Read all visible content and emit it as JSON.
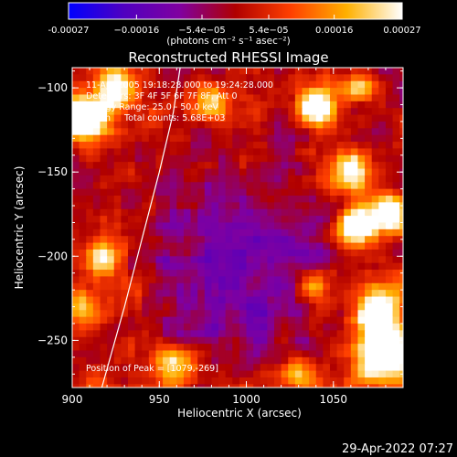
{
  "chart_data": {
    "type": "heatmap",
    "title": "Reconstructed RHESSI Image",
    "xlabel": "Heliocentric X (arcsec)",
    "ylabel": "Heliocentric Y (arcsec)",
    "xlim": [
      900,
      1090
    ],
    "ylim": [
      -278,
      -88
    ],
    "x_ticks": [
      900,
      950,
      1000,
      1050
    ],
    "x_tick_labels": [
      "900",
      "950",
      "1000",
      "1050"
    ],
    "y_ticks": [
      -100,
      -150,
      -200,
      -250
    ],
    "y_tick_labels": [
      "−100",
      "−150",
      "−200",
      "−250"
    ],
    "colorbar": {
      "range": [
        -0.00027,
        0.00027
      ],
      "ticks": [
        -0.00027,
        -0.00016,
        -5.4e-05,
        5.4e-05,
        0.00016,
        0.00027
      ],
      "tick_labels": [
        "-0.00027",
        "−0.00016",
        "−5.4e−05",
        "5.4e−05",
        "0.00016",
        "0.00027"
      ],
      "unit_label": "(photons cm⁻² s⁻¹ asec⁻²)",
      "colors": [
        "#0000ff",
        "#5000c0",
        "#8000a0",
        "#b00000",
        "#ff4000",
        "#ffb000",
        "#ffffff"
      ]
    },
    "annotations": [
      "11-Apr-2005 19:18:28.000 to 19:24:28.000",
      "Detectors: 3F 4F 5F 6F 7F 8F, Att 0",
      "Energy Range: 25.0 - 50.0 keV",
      "Clean     Total counts: 5.68E+03"
    ],
    "peak_label": "Position of Peak = [1079,-269]",
    "peak": [
      1079,
      -269
    ],
    "limb_curve": [
      [
        917,
        -278
      ],
      [
        930,
        -230
      ],
      [
        940,
        -190
      ],
      [
        950,
        -150
      ],
      [
        958,
        -115
      ],
      [
        962,
        -88
      ]
    ],
    "sources": [
      {
        "x": 908,
        "y": -118,
        "amp": 1.0,
        "r": 9
      },
      {
        "x": 925,
        "y": -100,
        "amp": 0.7,
        "r": 8
      },
      {
        "x": 1080,
        "y": -258,
        "amp": 1.0,
        "r": 11
      },
      {
        "x": 1076,
        "y": -232,
        "amp": 0.8,
        "r": 9
      },
      {
        "x": 1062,
        "y": -182,
        "amp": 0.9,
        "r": 7
      },
      {
        "x": 1082,
        "y": -175,
        "amp": 0.8,
        "r": 8
      },
      {
        "x": 1040,
        "y": -112,
        "amp": 0.85,
        "r": 7
      },
      {
        "x": 1060,
        "y": -150,
        "amp": 0.6,
        "r": 8
      },
      {
        "x": 1065,
        "y": -100,
        "amp": 0.6,
        "r": 6
      },
      {
        "x": 918,
        "y": -200,
        "amp": 0.55,
        "r": 8
      },
      {
        "x": 905,
        "y": -230,
        "amp": 0.5,
        "r": 7
      },
      {
        "x": 960,
        "y": -265,
        "amp": 0.55,
        "r": 8
      },
      {
        "x": 1030,
        "y": -270,
        "amp": 0.5,
        "r": 7
      },
      {
        "x": 980,
        "y": -110,
        "amp": 0.45,
        "r": 7
      },
      {
        "x": 1040,
        "y": -220,
        "amp": 0.5,
        "r": 7
      }
    ]
  },
  "timestamp": "29-Apr-2022 07:27"
}
